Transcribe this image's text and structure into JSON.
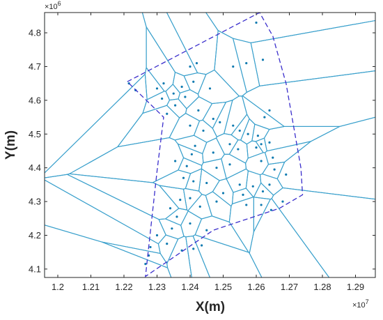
{
  "chart_data": {
    "type": "scatter",
    "title": "",
    "xlabel": "X(m)",
    "ylabel": "Y(m)",
    "x_multiplier": "×10",
    "x_exponent": "7",
    "y_multiplier": "×10",
    "y_exponent": "6",
    "xlim": [
      11960000,
      12960000
    ],
    "ylim": [
      4075000,
      4860000
    ],
    "xticks": [
      {
        "value": 12000000,
        "label": "1.2"
      },
      {
        "value": 12100000,
        "label": "1.21"
      },
      {
        "value": 12200000,
        "label": "1.22"
      },
      {
        "value": 12300000,
        "label": "1.23"
      },
      {
        "value": 12400000,
        "label": "1.24"
      },
      {
        "value": 12500000,
        "label": "1.25"
      },
      {
        "value": 12600000,
        "label": "1.26"
      },
      {
        "value": 12700000,
        "label": "1.27"
      },
      {
        "value": 12800000,
        "label": "1.28"
      },
      {
        "value": 12900000,
        "label": "1.29"
      }
    ],
    "yticks": [
      {
        "value": 4100000,
        "label": "4.1"
      },
      {
        "value": 4200000,
        "label": "4.2"
      },
      {
        "value": 4300000,
        "label": "4.3"
      },
      {
        "value": 4400000,
        "label": "4.4"
      },
      {
        "value": 4500000,
        "label": "4.5"
      },
      {
        "value": 4600000,
        "label": "4.6"
      },
      {
        "value": 4700000,
        "label": "4.7"
      },
      {
        "value": 4800000,
        "label": "4.8"
      }
    ],
    "grid": false,
    "colors": {
      "cells": "#3aa0cc",
      "points": "#0f7ab0",
      "boundary": "#3a2ecc",
      "axes": "#262626"
    },
    "boundary": [
      [
        12210000,
        4655000
      ],
      [
        12610000,
        4860000
      ],
      [
        12650000,
        4790000
      ],
      [
        12690000,
        4650000
      ],
      [
        12735000,
        4400000
      ],
      [
        12740000,
        4320000
      ],
      [
        12670000,
        4280000
      ],
      [
        12470000,
        4215000
      ],
      [
        12265000,
        4078000
      ],
      [
        12300000,
        4390000
      ],
      [
        12320000,
        4550000
      ]
    ],
    "points": [
      [
        12400000,
        4700000
      ],
      [
        12420000,
        4710000
      ],
      [
        12375000,
        4640000
      ],
      [
        12410000,
        4655000
      ],
      [
        12385000,
        4610000
      ],
      [
        12350000,
        4620000
      ],
      [
        12315000,
        4605000
      ],
      [
        12355000,
        4585000
      ],
      [
        12320000,
        4650000
      ],
      [
        12300000,
        4635000
      ],
      [
        12215000,
        4650000
      ],
      [
        12235000,
        4630000
      ],
      [
        12330000,
        4560000
      ],
      [
        12460000,
        4635000
      ],
      [
        12425000,
        4570000
      ],
      [
        12400000,
        4525000
      ],
      [
        12440000,
        4510000
      ],
      [
        12470000,
        4545000
      ],
      [
        12490000,
        4535000
      ],
      [
        12530000,
        4525000
      ],
      [
        12550000,
        4510000
      ],
      [
        12575000,
        4500000
      ],
      [
        12605000,
        4495000
      ],
      [
        12625000,
        4550000
      ],
      [
        12640000,
        4570000
      ],
      [
        12615000,
        4470000
      ],
      [
        12600000,
        4460000
      ],
      [
        12640000,
        4475000
      ],
      [
        12650000,
        4430000
      ],
      [
        12615000,
        4420000
      ],
      [
        12545000,
        4455000
      ],
      [
        12520000,
        4470000
      ],
      [
        12470000,
        4445000
      ],
      [
        12415000,
        4465000
      ],
      [
        12405000,
        4440000
      ],
      [
        12390000,
        4405000
      ],
      [
        12355000,
        4420000
      ],
      [
        12380000,
        4370000
      ],
      [
        12410000,
        4360000
      ],
      [
        12450000,
        4355000
      ],
      [
        12500000,
        4325000
      ],
      [
        12550000,
        4350000
      ],
      [
        12560000,
        4320000
      ],
      [
        12590000,
        4345000
      ],
      [
        12620000,
        4330000
      ],
      [
        12640000,
        4350000
      ],
      [
        12655000,
        4395000
      ],
      [
        12690000,
        4380000
      ],
      [
        12680000,
        4300000
      ],
      [
        12615000,
        4290000
      ],
      [
        12645000,
        4275000
      ],
      [
        12570000,
        4290000
      ],
      [
        12480000,
        4300000
      ],
      [
        12430000,
        4285000
      ],
      [
        12370000,
        4305000
      ],
      [
        12340000,
        4280000
      ],
      [
        12360000,
        4255000
      ],
      [
        12400000,
        4235000
      ],
      [
        12345000,
        4220000
      ],
      [
        12300000,
        4200000
      ],
      [
        12330000,
        4175000
      ],
      [
        12375000,
        4155000
      ],
      [
        12410000,
        4160000
      ],
      [
        12450000,
        4215000
      ],
      [
        12275000,
        4140000
      ],
      [
        12265000,
        4115000
      ],
      [
        12280000,
        4165000
      ],
      [
        12435000,
        4170000
      ],
      [
        12400000,
        4310000
      ],
      [
        12530000,
        4700000
      ],
      [
        12570000,
        4710000
      ],
      [
        12620000,
        4720000
      ],
      [
        12600000,
        4830000
      ],
      [
        12520000,
        4410000
      ],
      [
        12480000,
        4400000
      ]
    ]
  }
}
